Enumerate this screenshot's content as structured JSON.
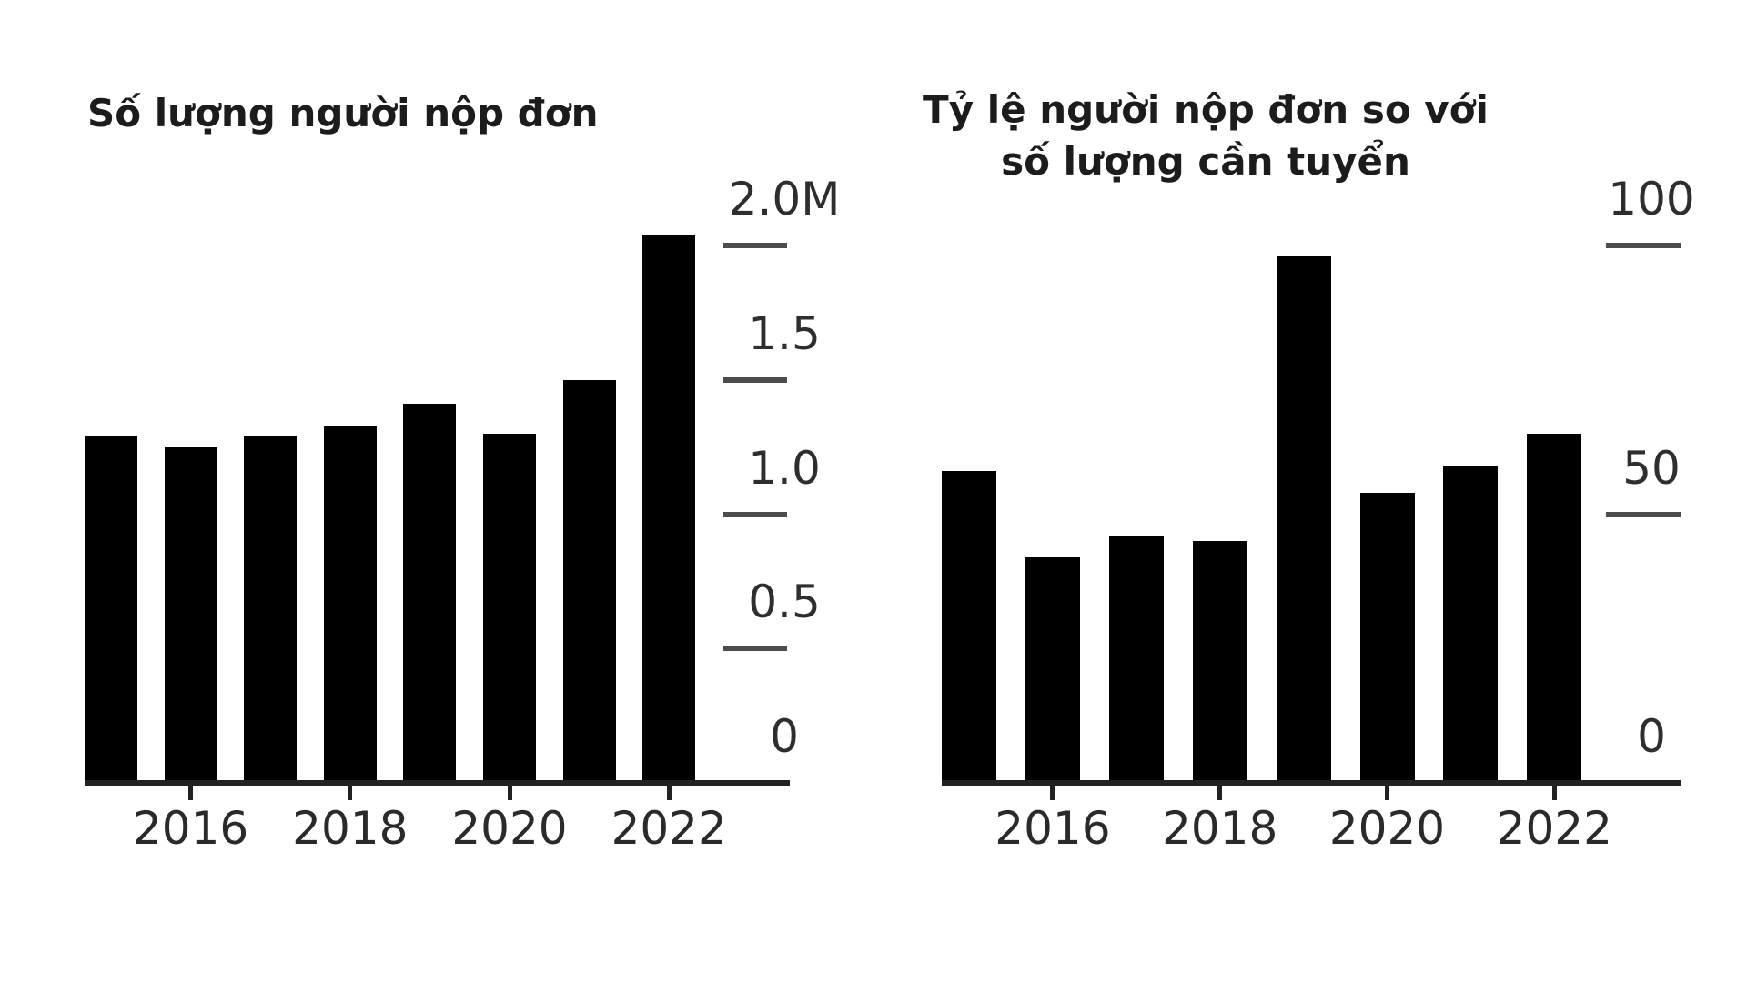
{
  "chart_data": [
    {
      "type": "bar",
      "title": "Số lượng người nộp đơn",
      "x": [
        2015,
        2016,
        2017,
        2018,
        2019,
        2020,
        2021,
        2022
      ],
      "values": [
        1.29,
        1.25,
        1.29,
        1.33,
        1.41,
        1.3,
        1.5,
        2.04
      ],
      "unit": "millions",
      "ylim": [
        0,
        2.0
      ],
      "ytick_labels": [
        "2.0M",
        "1.5",
        "1.0",
        "0.5",
        "0"
      ],
      "ytick_values": [
        2.0,
        1.5,
        1.0,
        0.5,
        0
      ],
      "xtick_labels": [
        "2016",
        "2018",
        "2020",
        "2022"
      ],
      "xtick_years": [
        2016,
        2018,
        2020,
        2022
      ],
      "axis_side": "right",
      "grid": "off",
      "legend": "none",
      "bar_color": "#000000"
    },
    {
      "type": "bar",
      "title": "Tỷ lệ người nộp đơn so với số lượng cần tuyển",
      "title_lines": [
        "Tỷ lệ người nộp đơn so với",
        "số lượng cần tuyển"
      ],
      "x": [
        2015,
        2016,
        2017,
        2018,
        2019,
        2020,
        2021,
        2022
      ],
      "values": [
        58,
        42,
        46,
        45,
        98,
        54,
        59,
        65
      ],
      "unit": "ratio",
      "ylim": [
        0,
        100
      ],
      "ytick_labels": [
        "100",
        "50",
        "0"
      ],
      "ytick_values": [
        100,
        50,
        0
      ],
      "xtick_labels": [
        "2016",
        "2018",
        "2020",
        "2022"
      ],
      "xtick_years": [
        2016,
        2018,
        2020,
        2022
      ],
      "axis_side": "right",
      "grid": "off",
      "legend": "none",
      "bar_color": "#000000"
    }
  ]
}
